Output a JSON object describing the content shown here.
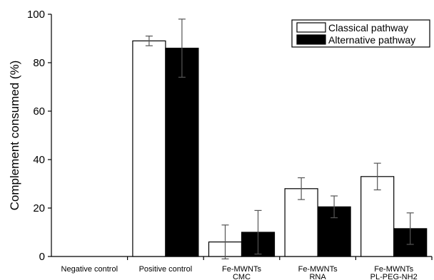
{
  "chart_data": {
    "type": "bar",
    "title": "",
    "xlabel": "",
    "ylabel": "Complement consumed (%)",
    "ylim": [
      0,
      100
    ],
    "yticks": [
      0,
      20,
      40,
      60,
      80,
      100
    ],
    "grid": false,
    "legend_position": "top-right",
    "categories": [
      [
        "Negative control"
      ],
      [
        "Positive control"
      ],
      [
        "Fe-MWNTs",
        "CMC"
      ],
      [
        "Fe-MWNTs",
        "RNA"
      ],
      [
        "Fe-MWNTs",
        "PL-PEG-NH2"
      ]
    ],
    "series": [
      {
        "name": "Classical pathway",
        "color": "#ffffff",
        "values": [
          0,
          89,
          6,
          28,
          33
        ],
        "errors": [
          0,
          2,
          7,
          4.5,
          5.5
        ]
      },
      {
        "name": "Alternative pathway",
        "color": "#000000",
        "values": [
          0,
          86,
          10,
          20.5,
          11.5
        ],
        "errors": [
          0,
          12,
          9,
          4.5,
          6.5
        ]
      }
    ]
  }
}
